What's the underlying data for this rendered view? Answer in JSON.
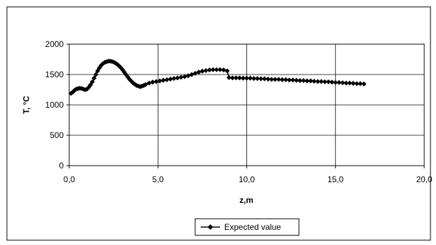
{
  "chart_data": {
    "type": "line",
    "title": "",
    "xlabel": "z,m",
    "ylabel": "T, °C",
    "xlim": [
      0,
      20
    ],
    "ylim": [
      0,
      2000
    ],
    "x_ticks": [
      0,
      5,
      10,
      15,
      20
    ],
    "x_tick_labels": [
      "0,0",
      "5,0",
      "10,0",
      "15,0",
      "20,0"
    ],
    "y_ticks": [
      0,
      500,
      1000,
      1500,
      2000
    ],
    "y_tick_labels": [
      "0",
      "500",
      "1000",
      "1500",
      "2000"
    ],
    "grid": true,
    "legend_position": "bottom",
    "series": [
      {
        "name": "Expected value",
        "color": "#000000",
        "marker": "diamond",
        "x": [
          0.1,
          0.2,
          0.3,
          0.4,
          0.5,
          0.6,
          0.7,
          0.8,
          0.9,
          1.0,
          1.1,
          1.2,
          1.3,
          1.4,
          1.5,
          1.6,
          1.7,
          1.8,
          1.9,
          2.0,
          2.1,
          2.2,
          2.3,
          2.4,
          2.5,
          2.6,
          2.7,
          2.8,
          2.9,
          3.0,
          3.1,
          3.2,
          3.3,
          3.4,
          3.5,
          3.6,
          3.7,
          3.8,
          3.9,
          4.0,
          4.1,
          4.2,
          4.3,
          4.5,
          4.7,
          4.9,
          5.1,
          5.3,
          5.5,
          5.7,
          5.9,
          6.1,
          6.3,
          6.5,
          6.7,
          6.9,
          7.1,
          7.3,
          7.5,
          7.7,
          7.9,
          8.1,
          8.3,
          8.5,
          8.7,
          8.9,
          9.0,
          9.2,
          9.4,
          9.6,
          9.8,
          10.0,
          10.2,
          10.4,
          10.6,
          10.8,
          11.0,
          11.2,
          11.4,
          11.6,
          11.8,
          12.0,
          12.2,
          12.4,
          12.6,
          12.8,
          13.0,
          13.2,
          13.4,
          13.6,
          13.8,
          14.0,
          14.2,
          14.4,
          14.6,
          14.8,
          15.0,
          15.2,
          15.4,
          15.6,
          15.8,
          16.0,
          16.2,
          16.4,
          16.6
        ],
        "y": [
          1190,
          1210,
          1240,
          1260,
          1270,
          1275,
          1270,
          1260,
          1250,
          1260,
          1290,
          1330,
          1380,
          1440,
          1500,
          1560,
          1610,
          1650,
          1680,
          1700,
          1710,
          1720,
          1720,
          1715,
          1705,
          1690,
          1670,
          1645,
          1615,
          1580,
          1540,
          1500,
          1460,
          1420,
          1390,
          1360,
          1340,
          1320,
          1310,
          1300,
          1310,
          1320,
          1335,
          1360,
          1375,
          1385,
          1395,
          1405,
          1415,
          1425,
          1435,
          1445,
          1455,
          1465,
          1480,
          1500,
          1520,
          1540,
          1555,
          1565,
          1575,
          1580,
          1580,
          1580,
          1575,
          1560,
          1450,
          1445,
          1445,
          1445,
          1440,
          1440,
          1440,
          1435,
          1435,
          1430,
          1430,
          1425,
          1420,
          1420,
          1420,
          1415,
          1415,
          1410,
          1410,
          1405,
          1400,
          1400,
          1395,
          1395,
          1390,
          1385,
          1385,
          1380,
          1380,
          1375,
          1370,
          1370,
          1365,
          1360,
          1360,
          1355,
          1350,
          1350,
          1345
        ]
      }
    ]
  }
}
